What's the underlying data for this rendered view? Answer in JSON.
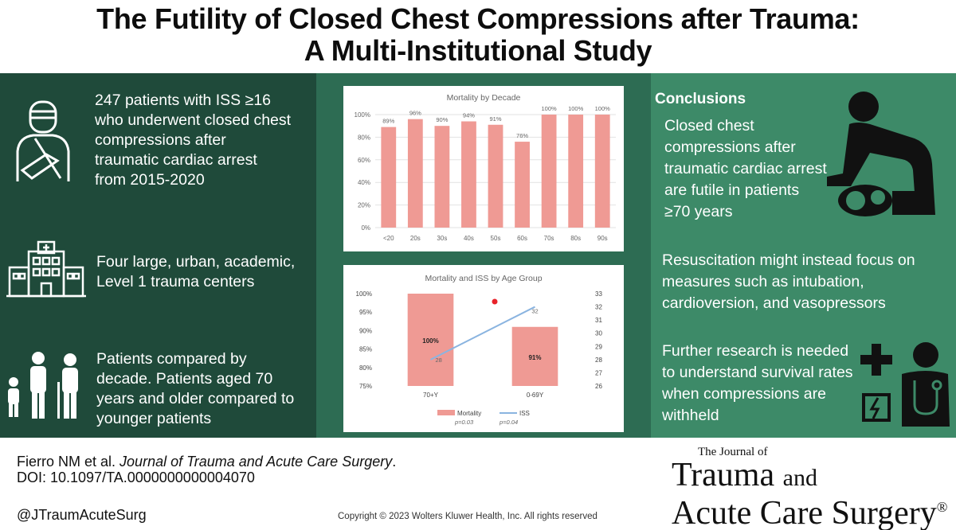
{
  "title": {
    "line1": "The Futility of Closed Chest Compressions after Trauma:",
    "line2": "A Multi-Institutional Study"
  },
  "left": {
    "block1": [
      "247 patients with ISS ≥16",
      "who underwent closed chest",
      "compressions after",
      "traumatic cardiac arrest",
      "from 2015-2020"
    ],
    "block2": [
      "Four large, urban, academic,",
      "Level 1 trauma centers"
    ],
    "block3": [
      "Patients compared by",
      "decade. Patients aged 70",
      "years and older compared to",
      "younger patients"
    ]
  },
  "chart_data": [
    {
      "type": "bar",
      "title": "Mortality by Decade",
      "categories": [
        "<20",
        "20s",
        "30s",
        "40s",
        "50s",
        "60s",
        "70s",
        "80s",
        "90s"
      ],
      "values": [
        89,
        96,
        90,
        94,
        91,
        76,
        100,
        100,
        100
      ],
      "value_labels": [
        "89%",
        "96%",
        "90%",
        "94%",
        "91%",
        "76%",
        "100%",
        "100%",
        "100%"
      ],
      "y_ticks": [
        "0%",
        "20%",
        "40%",
        "60%",
        "80%",
        "100%"
      ],
      "ylim": [
        0,
        100
      ],
      "bar_color": "#ef9a94"
    },
    {
      "type": "bar+line",
      "title": "Mortality and ISS by Age Group",
      "categories": [
        "70+Y",
        "0-69Y"
      ],
      "series": [
        {
          "name": "Mortality",
          "type": "bar",
          "values": [
            100,
            91
          ],
          "labels": [
            "100%",
            "91%"
          ],
          "color": "#ef9a94",
          "axis": "left"
        },
        {
          "name": "ISS",
          "type": "line",
          "values": [
            28,
            32
          ],
          "labels": [
            "28",
            "32"
          ],
          "color": "#8ab4e0",
          "axis": "right"
        }
      ],
      "y_left_ticks": [
        "75%",
        "80%",
        "85%",
        "90%",
        "95%",
        "100%"
      ],
      "y_left_lim": [
        75,
        100
      ],
      "y_right_ticks": [
        "26",
        "27",
        "28",
        "29",
        "30",
        "31",
        "32",
        "33"
      ],
      "y_right_lim": [
        26,
        33
      ],
      "pvalues": [
        "p=0.03",
        "p=0.04"
      ],
      "marker_color": "#e8222a"
    }
  ],
  "conclusions": {
    "heading": "Conclusions",
    "block1": [
      "Closed chest",
      "compressions after",
      "traumatic cardiac arrest",
      "are futile in patients",
      "≥70 years"
    ],
    "block2": [
      "Resuscitation might instead focus on",
      "measures such as intubation,",
      "cardioversion, and vasopressors"
    ],
    "block3": [
      "Further research is needed",
      "to understand survival rates",
      "when compressions are",
      "withheld"
    ]
  },
  "footer": {
    "citation_authors": "Fierro NM et al.",
    "citation_journal": "Journal of Trauma and Acute Care Surgery",
    "citation_end": ".",
    "doi": "DOI: 10.1097/TA.0000000000004070",
    "handle": "@JTraumAcuteSurg",
    "copyright": "Copyright © 2023  Wolters Kluwer Health, Inc. All rights reserved",
    "journal_of": "The Journal of",
    "journal_l1a": "Trauma",
    "journal_l1b": "and",
    "journal_l2": "Acute Care Surgery",
    "journal_reg": "®"
  },
  "colors": {
    "left_panel": "#1f4a3a",
    "mid_panel": "#2d6c53",
    "right_panel": "#3d8a68",
    "bar": "#ef9a94"
  }
}
